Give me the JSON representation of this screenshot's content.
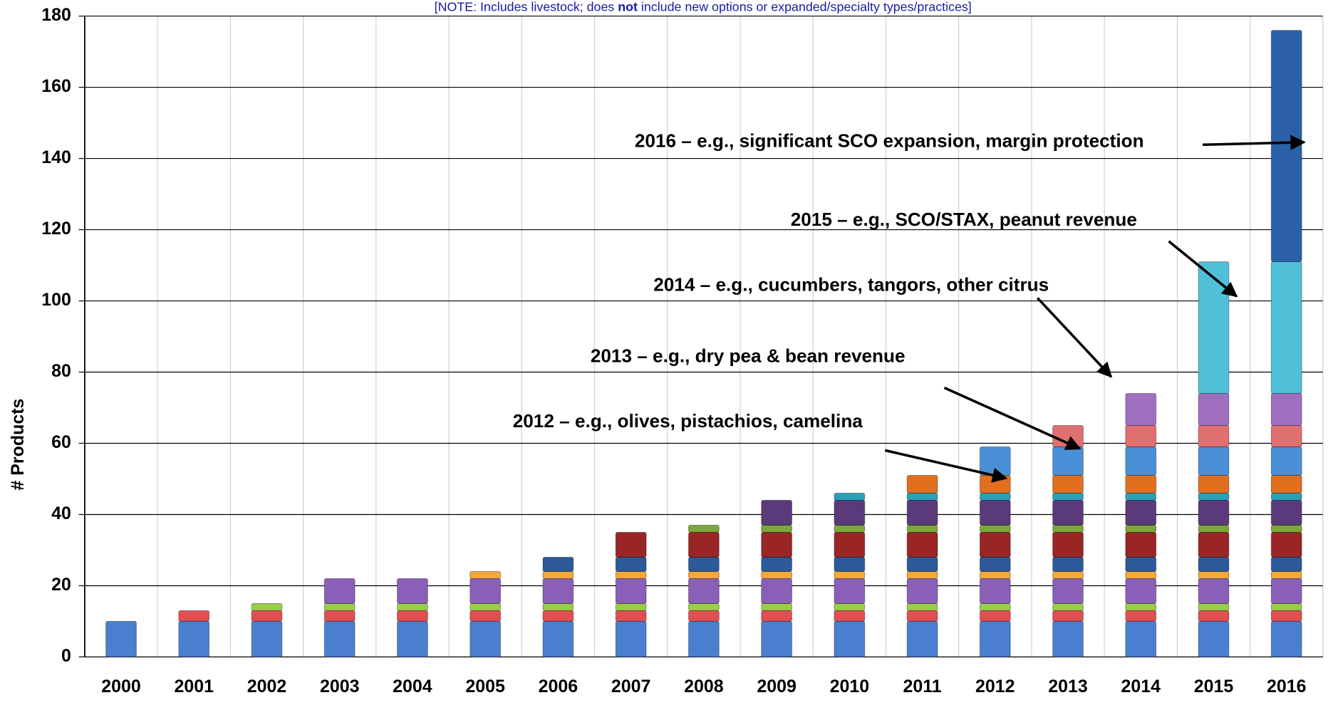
{
  "chart_data": {
    "type": "stacked_bar",
    "note": [
      "[NOTE: Includes livestock; does ",
      "not",
      " include new options or expanded/specialty types/practices]"
    ],
    "y_label": "# Products",
    "categories": [
      "2000",
      "2001",
      "2002",
      "2003",
      "2004",
      "2005",
      "2006",
      "2007",
      "2008",
      "2009",
      "2010",
      "2011",
      "2012",
      "2013",
      "2014",
      "2015",
      "2016"
    ],
    "series": [
      {
        "color": "#4a7fd0",
        "values": [
          10,
          10,
          10,
          10,
          10,
          10,
          10,
          10,
          10,
          10,
          10,
          10,
          10,
          10,
          10,
          10,
          10
        ]
      },
      {
        "color": "#e05050",
        "values": [
          null,
          3,
          3,
          3,
          3,
          3,
          3,
          3,
          3,
          3,
          3,
          3,
          3,
          3,
          3,
          3,
          3
        ]
      },
      {
        "color": "#9acd4a",
        "values": [
          null,
          null,
          2,
          2,
          2,
          2,
          2,
          2,
          2,
          2,
          2,
          2,
          2,
          2,
          2,
          2,
          2
        ]
      },
      {
        "color": "#8a5fb8",
        "values": [
          null,
          null,
          null,
          7,
          7,
          7,
          7,
          7,
          7,
          7,
          7,
          7,
          7,
          7,
          7,
          7,
          7
        ]
      },
      {
        "color": "#f2a83a",
        "values": [
          null,
          null,
          null,
          null,
          null,
          2,
          2,
          2,
          2,
          2,
          2,
          2,
          2,
          2,
          2,
          2,
          2
        ]
      },
      {
        "color": "#2c5a9a",
        "values": [
          null,
          null,
          null,
          null,
          null,
          null,
          4,
          4,
          4,
          4,
          4,
          4,
          4,
          4,
          4,
          4,
          4
        ]
      },
      {
        "color": "#9a2525",
        "values": [
          null,
          null,
          null,
          null,
          null,
          null,
          null,
          7,
          7,
          7,
          7,
          7,
          7,
          7,
          7,
          7,
          7
        ]
      },
      {
        "color": "#7aa83a",
        "values": [
          null,
          null,
          null,
          null,
          null,
          null,
          null,
          null,
          2,
          2,
          2,
          2,
          2,
          2,
          2,
          2,
          2
        ]
      },
      {
        "color": "#5a3a7a",
        "values": [
          null,
          null,
          null,
          null,
          null,
          null,
          null,
          null,
          null,
          7,
          7,
          7,
          7,
          7,
          7,
          7,
          7
        ]
      },
      {
        "color": "#2aa0b8",
        "values": [
          null,
          null,
          null,
          null,
          null,
          null,
          null,
          null,
          null,
          null,
          2,
          2,
          2,
          2,
          2,
          2,
          2
        ]
      },
      {
        "color": "#e07020",
        "values": [
          null,
          null,
          null,
          null,
          null,
          null,
          null,
          null,
          null,
          null,
          null,
          5,
          5,
          5,
          5,
          5,
          5
        ]
      },
      {
        "color": "#4a90d8",
        "values": [
          null,
          null,
          null,
          null,
          null,
          null,
          null,
          null,
          null,
          null,
          null,
          null,
          8,
          8,
          8,
          8,
          8
        ]
      },
      {
        "color": "#e07070",
        "values": [
          null,
          null,
          null,
          null,
          null,
          null,
          null,
          null,
          null,
          null,
          null,
          null,
          null,
          6,
          6,
          6,
          6
        ]
      },
      {
        "color": "#a070c0",
        "values": [
          null,
          null,
          null,
          null,
          null,
          null,
          null,
          null,
          null,
          null,
          null,
          null,
          null,
          null,
          9,
          9,
          9
        ]
      },
      {
        "color": "#50c0d8",
        "values": [
          null,
          null,
          null,
          null,
          null,
          null,
          null,
          null,
          null,
          null,
          null,
          null,
          null,
          null,
          null,
          37,
          37
        ]
      },
      {
        "color": "#2a60a8",
        "values": [
          null,
          null,
          null,
          null,
          null,
          null,
          null,
          null,
          null,
          null,
          null,
          null,
          null,
          null,
          null,
          null,
          65
        ]
      }
    ],
    "ylim": [
      0,
      180
    ],
    "yticks": [
      0,
      20,
      40,
      60,
      80,
      100,
      120,
      140,
      160,
      180
    ],
    "grid": true,
    "annotations": [
      "2016 – e.g., significant SCO expansion, margin protection",
      "2015 – e.g., SCO/STAX, peanut revenue",
      "2014 – e.g., cucumbers, tangors, other citrus",
      "2013 – e.g., dry pea & bean revenue",
      "2012 – e.g., olives, pistachios, camelina"
    ]
  }
}
